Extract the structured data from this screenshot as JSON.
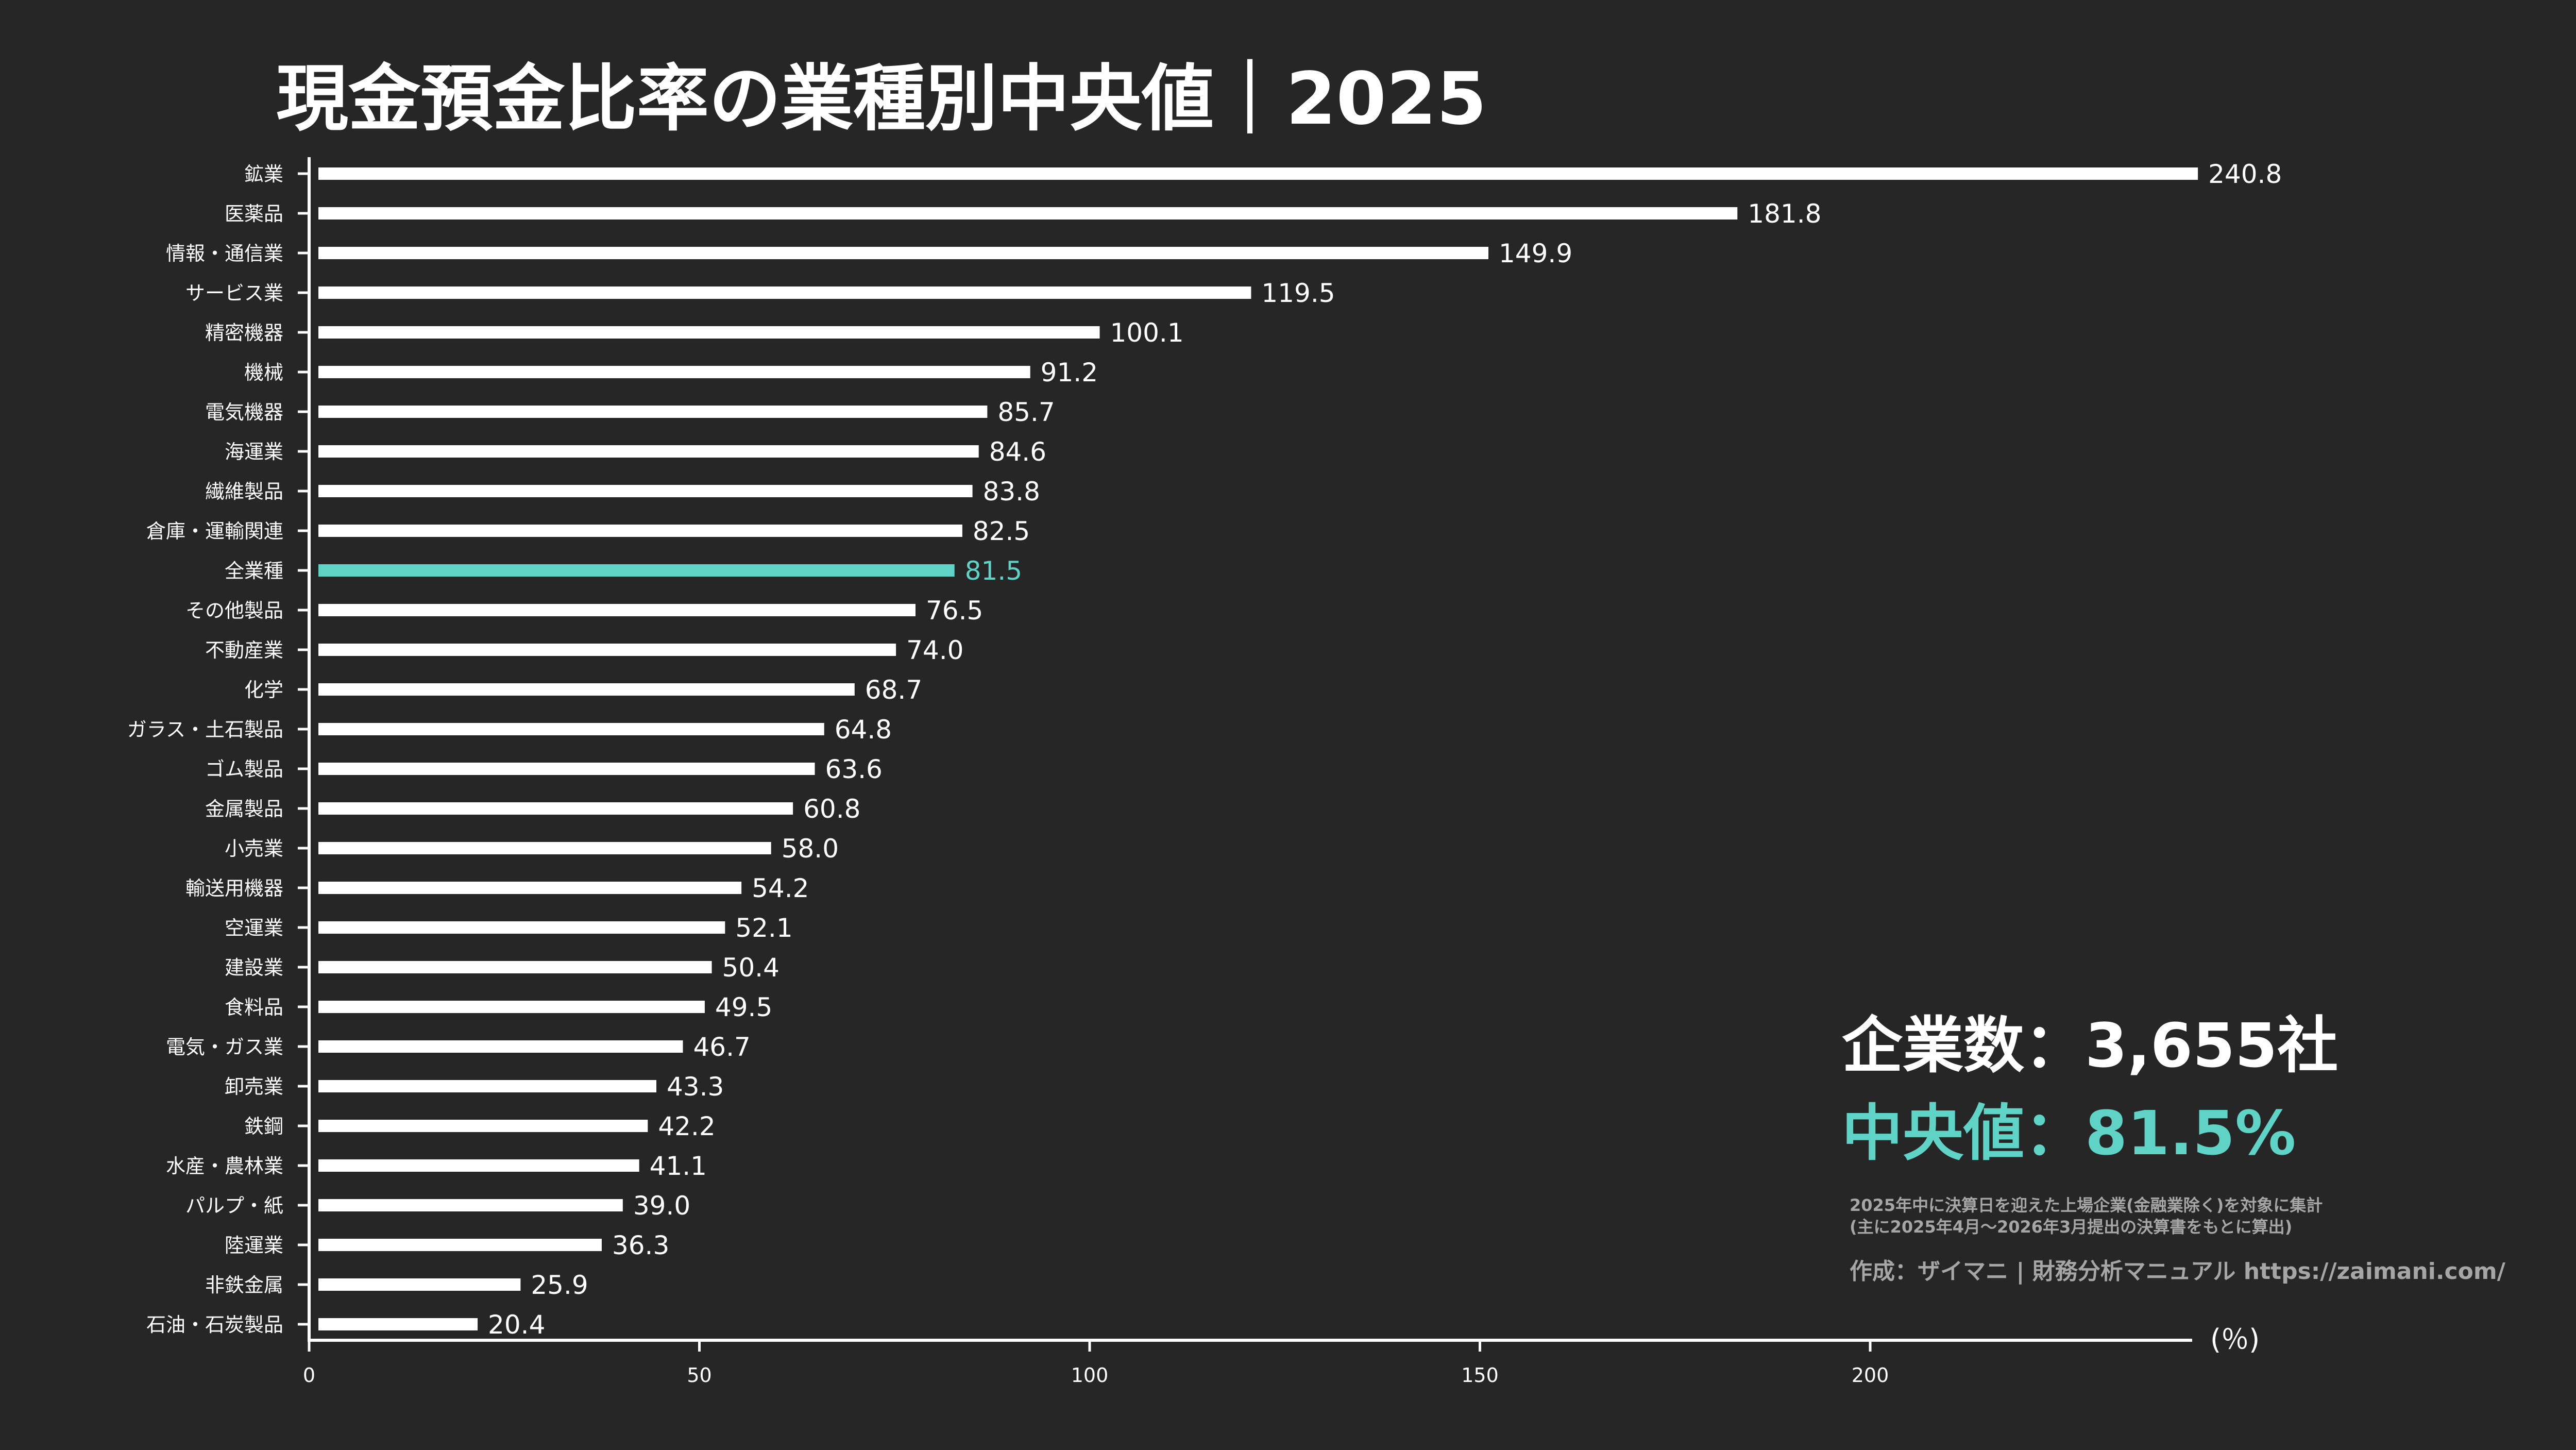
{
  "colors": {
    "background": "#262626",
    "bar": "#ffffff",
    "highlight": "#5ed3c6",
    "note": "#a6a6a6"
  },
  "chart_data": {
    "type": "bar",
    "orientation": "horizontal",
    "title": "現金預金比率の業種別中央値｜2025",
    "xlabel": "(％)",
    "xlim": [
      0,
      240.8
    ],
    "xticks": [
      0,
      50,
      100,
      150,
      200
    ],
    "grid": false,
    "highlight_category": "全業種",
    "categories": [
      "鉱業",
      "医薬品",
      "情報・通信業",
      "サービス業",
      "精密機器",
      "機械",
      "電気機器",
      "海運業",
      "繊維製品",
      "倉庫・運輸関連",
      "全業種",
      "その他製品",
      "不動産業",
      "化学",
      "ガラス・土石製品",
      "ゴム製品",
      "金属製品",
      "小売業",
      "輸送用機器",
      "空運業",
      "建設業",
      "食料品",
      "電気・ガス業",
      "卸売業",
      "鉄鋼",
      "水産・農林業",
      "パルプ・紙",
      "陸運業",
      "非鉄金属",
      "石油・石炭製品"
    ],
    "values": [
      240.8,
      181.8,
      149.9,
      119.5,
      100.1,
      91.2,
      85.7,
      84.6,
      83.8,
      82.5,
      81.5,
      76.5,
      74.0,
      68.7,
      64.8,
      63.6,
      60.8,
      58.0,
      54.2,
      52.1,
      50.4,
      49.5,
      46.7,
      43.3,
      42.2,
      41.1,
      39.0,
      36.3,
      25.9,
      20.4
    ],
    "value_labels": [
      "240.8",
      "181.8",
      "149.9",
      "119.5",
      "100.1",
      "91.2",
      "85.7",
      "84.6",
      "83.8",
      "82.5",
      "81.5",
      "76.5",
      "74.0",
      "68.7",
      "64.8",
      "63.6",
      "60.8",
      "58.0",
      "54.2",
      "52.1",
      "50.4",
      "49.5",
      "46.7",
      "43.3",
      "42.2",
      "41.1",
      "39.0",
      "36.3",
      "25.9",
      "20.4"
    ]
  },
  "annotations": {
    "company_count": "企業数：3,655社",
    "median": "中央値：81.5%",
    "note_line1": "2025年中に決算日を迎えた上場企業(金融業除く)を対象に集計",
    "note_line2": "(主に2025年4月～2026年3月提出の決算書をもとに算出)",
    "credit": "作成：ザイマニ | 財務分析マニュアル https://zaimani.com/"
  }
}
